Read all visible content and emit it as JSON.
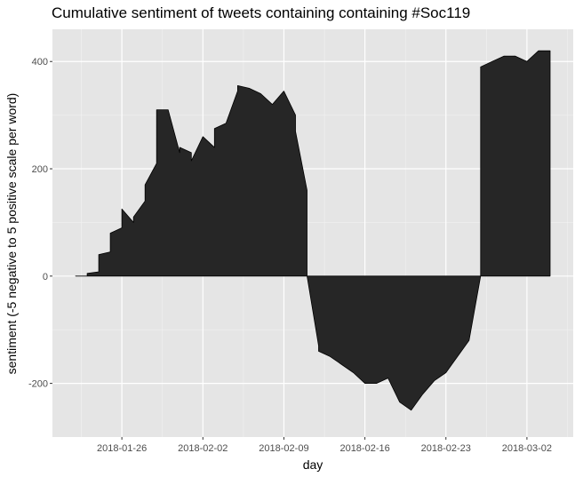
{
  "chart_data": {
    "type": "area",
    "title": "Cumulative sentiment of tweets containing containing #Soc119",
    "xlabel": "day",
    "ylabel": "sentiment (-5 negative to 5 positive scale per word)",
    "x_ticks": [
      "2018-01-26",
      "2018-02-02",
      "2018-02-09",
      "2018-02-16",
      "2018-02-23",
      "2018-03-02"
    ],
    "y_ticks": [
      -200,
      0,
      200,
      400
    ],
    "xlim": [
      "2018-01-20",
      "2018-03-06"
    ],
    "ylim": [
      -300,
      460
    ],
    "grid": true,
    "panel_background": "#e5e5e5",
    "fill_color": "#262626",
    "series": [
      {
        "x": [
          "2018-01-22",
          "2018-01-23",
          "2018-01-23",
          "2018-01-24",
          "2018-01-24",
          "2018-01-25",
          "2018-01-25",
          "2018-01-26",
          "2018-01-26",
          "2018-01-27",
          "2018-01-27",
          "2018-01-28",
          "2018-01-28",
          "2018-01-29",
          "2018-01-29",
          "2018-01-30",
          "2018-01-31",
          "2018-01-31",
          "2018-02-01",
          "2018-02-01",
          "2018-02-02",
          "2018-02-03",
          "2018-02-03",
          "2018-02-04",
          "2018-02-05",
          "2018-02-05",
          "2018-02-06",
          "2018-02-07",
          "2018-02-08",
          "2018-02-09",
          "2018-02-10",
          "2018-02-10",
          "2018-02-11",
          "2018-02-11",
          "2018-02-12",
          "2018-02-12",
          "2018-02-13",
          "2018-02-14",
          "2018-02-15",
          "2018-02-16",
          "2018-02-17",
          "2018-02-18",
          "2018-02-19",
          "2018-02-20",
          "2018-02-21",
          "2018-02-22",
          "2018-02-23",
          "2018-02-24",
          "2018-02-25",
          "2018-02-26",
          "2018-02-26",
          "2018-02-27",
          "2018-02-28",
          "2018-03-01",
          "2018-03-02",
          "2018-03-03",
          "2018-03-04"
        ],
        "y": [
          0,
          0,
          5,
          8,
          40,
          45,
          80,
          90,
          125,
          100,
          110,
          140,
          170,
          210,
          310,
          310,
          230,
          240,
          230,
          215,
          260,
          240,
          275,
          285,
          345,
          355,
          350,
          340,
          320,
          345,
          300,
          270,
          160,
          0,
          -130,
          -140,
          -150,
          -165,
          -180,
          -200,
          -200,
          -190,
          -235,
          -250,
          -220,
          -195,
          -180,
          -150,
          -120,
          0,
          390,
          400,
          410,
          410,
          400,
          420,
          420
        ]
      }
    ]
  }
}
